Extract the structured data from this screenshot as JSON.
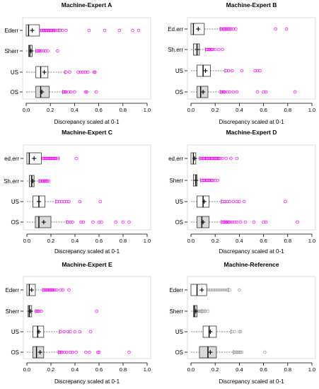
{
  "chart_data": [
    {
      "type": "boxplot",
      "title": "Machine-Expert A",
      "xlabel": "Discrepancy scaled at 0-1",
      "xlim": [
        0,
        1
      ],
      "xticks": [
        "0.0",
        "0.2",
        "0.4",
        "0.6",
        "0.8",
        "1.0"
      ],
      "point_color": "#ff00ff",
      "boxes": [
        {
          "label": "Ederr",
          "whisker_low": 0.0,
          "q1": 0.0,
          "median": 0.02,
          "q3": 0.11,
          "whisker_high": 0.27,
          "mean": 0.05,
          "fill": "#ffffff",
          "outliers": [
            0.12,
            0.13,
            0.14,
            0.15,
            0.16,
            0.17,
            0.18,
            0.19,
            0.2,
            0.21,
            0.22,
            0.23,
            0.24,
            0.26,
            0.28,
            0.3,
            0.33,
            0.52,
            0.65,
            0.77,
            0.88,
            0.93
          ]
        },
        {
          "label": "Sherr",
          "whisker_low": 0.0,
          "q1": 0.02,
          "median": 0.03,
          "q3": 0.05,
          "whisker_high": 0.08,
          "mean": 0.04,
          "fill": "#e8e8e8",
          "outliers": [
            0.09,
            0.1,
            0.11,
            0.12,
            0.14,
            0.16,
            0.18,
            0.26
          ]
        },
        {
          "label": "US",
          "whisker_low": 0.0,
          "q1": 0.08,
          "median": 0.12,
          "q3": 0.18,
          "whisker_high": 0.32,
          "mean": 0.15,
          "fill": "#ffffff",
          "outliers": [
            0.33,
            0.36,
            0.43,
            0.45,
            0.47,
            0.49,
            0.51,
            0.56,
            0.57
          ]
        },
        {
          "label": "OS",
          "whisker_low": 0.0,
          "q1": 0.08,
          "median": 0.12,
          "q3": 0.19,
          "whisker_high": 0.3,
          "mean": 0.13,
          "fill": "#d9d9d9",
          "outliers": [
            0.31,
            0.32,
            0.33,
            0.35,
            0.37,
            0.4,
            0.49,
            0.5,
            0.58
          ]
        }
      ]
    },
    {
      "type": "boxplot",
      "title": "Machine-Expert B",
      "xlabel": "Discrepancy scaled at 0-1",
      "xlim": [
        0,
        1
      ],
      "xticks": [
        "0.0",
        "0.2",
        "0.4",
        "0.6",
        "0.8",
        "1.0"
      ],
      "point_color": "#ff00ff",
      "boxes": [
        {
          "label": "Ed.err",
          "whisker_low": 0.0,
          "q1": 0.0,
          "median": 0.02,
          "q3": 0.11,
          "whisker_high": 0.24,
          "mean": 0.06,
          "fill": "#ffffff",
          "outliers": [
            0.25,
            0.26,
            0.27,
            0.28,
            0.29,
            0.3,
            0.31,
            0.32,
            0.33,
            0.35,
            0.37,
            0.7,
            0.79
          ]
        },
        {
          "label": "Sh.err",
          "whisker_low": 0.0,
          "q1": 0.02,
          "median": 0.05,
          "q3": 0.07,
          "whisker_high": 0.12,
          "mean": 0.05,
          "fill": "#e8e8e8",
          "outliers": [
            0.13,
            0.14,
            0.15,
            0.16,
            0.17,
            0.18,
            0.2,
            0.23,
            0.26
          ]
        },
        {
          "label": "US",
          "whisker_low": 0.0,
          "q1": 0.05,
          "median": 0.1,
          "q3": 0.16,
          "whisker_high": 0.28,
          "mean": 0.12,
          "fill": "#ffffff",
          "outliers": [
            0.29,
            0.31,
            0.34,
            0.42,
            0.53,
            0.55,
            0.57
          ]
        },
        {
          "label": "OS",
          "whisker_low": 0.0,
          "q1": 0.05,
          "median": 0.08,
          "q3": 0.14,
          "whisker_high": 0.24,
          "mean": 0.1,
          "fill": "#d9d9d9",
          "outliers": [
            0.25,
            0.26,
            0.27,
            0.28,
            0.3,
            0.32,
            0.35,
            0.38,
            0.55,
            0.6,
            0.62,
            0.86
          ]
        }
      ]
    },
    {
      "type": "boxplot",
      "title": "Machine-Expert C",
      "xlabel": "Discrepancy scaled at 0-1",
      "xlim": [
        0,
        1
      ],
      "xticks": [
        "0.0",
        "0.2",
        "0.4",
        "0.6",
        "0.8",
        "1.0"
      ],
      "point_color": "#ff00ff",
      "boxes": [
        {
          "label": "ed.err",
          "whisker_low": 0.0,
          "q1": 0.0,
          "median": 0.02,
          "q3": 0.12,
          "whisker_high": 0.27,
          "mean": 0.06,
          "fill": "#ffffff",
          "outliers": [
            0.13,
            0.14,
            0.15,
            0.16,
            0.17,
            0.18,
            0.19,
            0.2,
            0.21,
            0.22,
            0.23,
            0.24,
            0.25,
            0.41
          ]
        },
        {
          "label": "Sh.err",
          "whisker_low": 0.0,
          "q1": 0.02,
          "median": 0.04,
          "q3": 0.06,
          "whisker_high": 0.1,
          "mean": 0.05,
          "fill": "#e8e8e8",
          "outliers": [
            0.11,
            0.12,
            0.13,
            0.14,
            0.15,
            0.16,
            0.17,
            0.18
          ]
        },
        {
          "label": "US",
          "whisker_low": 0.0,
          "q1": 0.05,
          "median": 0.1,
          "q3": 0.15,
          "whisker_high": 0.24,
          "mean": 0.1,
          "fill": "#ffffff",
          "outliers": [
            0.25,
            0.27,
            0.29,
            0.31,
            0.33,
            0.35,
            0.44,
            0.61
          ]
        },
        {
          "label": "OS",
          "whisker_low": 0.0,
          "q1": 0.07,
          "median": 0.1,
          "q3": 0.2,
          "whisker_high": 0.33,
          "mean": 0.14,
          "fill": "#d9d9d9",
          "outliers": [
            0.34,
            0.36,
            0.38,
            0.45,
            0.47,
            0.55,
            0.6,
            0.62,
            0.74,
            0.8,
            0.85
          ]
        }
      ]
    },
    {
      "type": "boxplot",
      "title": "Machine-Expert D",
      "xlabel": "Discrepancy scaled at 0-1",
      "xlim": [
        0,
        1
      ],
      "xticks": [
        "0.0",
        "0.2",
        "0.4",
        "0.6",
        "0.8",
        "1.0"
      ],
      "point_color": "#ff00ff",
      "boxes": [
        {
          "label": "ed.err",
          "whisker_low": 0.0,
          "q1": 0.0,
          "median": 0.02,
          "q3": 0.04,
          "whisker_high": 0.07,
          "mean": 0.03,
          "fill": "#ffffff",
          "outliers": [
            0.08,
            0.09,
            0.1,
            0.11,
            0.12,
            0.13,
            0.14,
            0.15,
            0.16,
            0.17,
            0.18,
            0.19,
            0.2,
            0.21,
            0.22,
            0.23,
            0.24,
            0.26,
            0.29,
            0.33,
            0.38
          ]
        },
        {
          "label": "Sherr",
          "whisker_low": 0.0,
          "q1": 0.02,
          "median": 0.04,
          "q3": 0.05,
          "whisker_high": 0.08,
          "mean": 0.04,
          "fill": "#e8e8e8",
          "outliers": [
            0.09,
            0.1,
            0.11,
            0.12,
            0.13,
            0.14,
            0.15,
            0.16,
            0.17,
            0.18,
            0.2,
            0.22
          ]
        },
        {
          "label": "US",
          "whisker_low": 0.0,
          "q1": 0.05,
          "median": 0.1,
          "q3": 0.15,
          "whisker_high": 0.25,
          "mean": 0.11,
          "fill": "#ffffff",
          "outliers": [
            0.26,
            0.28,
            0.3,
            0.32,
            0.35,
            0.38,
            0.4,
            0.44,
            0.78
          ]
        },
        {
          "label": "OS",
          "whisker_low": 0.0,
          "q1": 0.05,
          "median": 0.09,
          "q3": 0.15,
          "whisker_high": 0.25,
          "mean": 0.1,
          "fill": "#d9d9d9",
          "outliers": [
            0.26,
            0.27,
            0.28,
            0.29,
            0.3,
            0.31,
            0.32,
            0.34,
            0.36,
            0.38,
            0.41,
            0.45,
            0.52,
            0.6,
            0.62,
            0.88
          ]
        }
      ]
    },
    {
      "type": "boxplot",
      "title": "Machine-Expert E",
      "xlabel": "Discrepancy scaled at 0-1",
      "xlim": [
        0,
        1
      ],
      "xticks": [
        "0.0",
        "0.2",
        "0.4",
        "0.6",
        "0.8",
        "1.0"
      ],
      "point_color": "#ff00ff",
      "boxes": [
        {
          "label": "Ederr",
          "whisker_low": 0.0,
          "q1": 0.0,
          "median": 0.02,
          "q3": 0.07,
          "whisker_high": 0.13,
          "mean": 0.04,
          "fill": "#ffffff",
          "outliers": [
            0.14,
            0.15,
            0.16,
            0.17,
            0.18,
            0.19,
            0.2,
            0.21,
            0.22,
            0.23,
            0.25,
            0.28,
            0.3,
            0.35
          ]
        },
        {
          "label": "Sherr",
          "whisker_low": 0.0,
          "q1": 0.01,
          "median": 0.02,
          "q3": 0.04,
          "whisker_high": 0.07,
          "mean": 0.03,
          "fill": "#e8e8e8",
          "outliers": [
            0.08,
            0.09,
            0.1,
            0.12,
            0.58
          ]
        },
        {
          "label": "US",
          "whisker_low": 0.0,
          "q1": 0.05,
          "median": 0.09,
          "q3": 0.14,
          "whisker_high": 0.27,
          "mean": 0.1,
          "fill": "#ffffff",
          "outliers": [
            0.28,
            0.31,
            0.34,
            0.36,
            0.4,
            0.44,
            0.53
          ]
        },
        {
          "label": "OS",
          "whisker_low": 0.0,
          "q1": 0.05,
          "median": 0.08,
          "q3": 0.14,
          "whisker_high": 0.26,
          "mean": 0.11,
          "fill": "#d9d9d9",
          "outliers": [
            0.27,
            0.28,
            0.29,
            0.31,
            0.33,
            0.36,
            0.38,
            0.41,
            0.49,
            0.52,
            0.59,
            0.6,
            0.85
          ]
        }
      ]
    },
    {
      "type": "boxplot",
      "title": "Machine-Reference",
      "xlabel": "Discrepancy scaled at 0-1",
      "xlim": [
        0,
        1
      ],
      "xticks": [
        "0.0",
        "0.2",
        "0.4",
        "0.6",
        "0.8",
        "1.0"
      ],
      "point_color": "#999999",
      "boxes": [
        {
          "label": "Ederr",
          "whisker_low": 0.0,
          "q1": 0.0,
          "median": 0.05,
          "q3": 0.13,
          "whisker_high": 0.31,
          "mean": 0.09,
          "fill": "#ffffff",
          "outliers": [
            0.14,
            0.16,
            0.18,
            0.2,
            0.22,
            0.24,
            0.26,
            0.28,
            0.3,
            0.32,
            0.4
          ]
        },
        {
          "label": "Sherr",
          "whisker_low": 0.0,
          "q1": 0.02,
          "median": 0.03,
          "q3": 0.05,
          "whisker_high": 0.09,
          "mean": 0.04,
          "fill": "#e8e8e8",
          "outliers": [
            0.06,
            0.07,
            0.08,
            0.1,
            0.11,
            0.12,
            0.14
          ]
        },
        {
          "label": "US",
          "whisker_low": 0.0,
          "q1": 0.1,
          "median": 0.15,
          "q3": 0.21,
          "whisker_high": 0.33,
          "mean": 0.16,
          "fill": "#ffffff",
          "outliers": [
            0.34,
            0.36,
            0.4,
            0.41
          ]
        },
        {
          "label": "OS",
          "whisker_low": 0.0,
          "q1": 0.07,
          "median": 0.14,
          "q3": 0.21,
          "whisker_high": 0.35,
          "mean": 0.16,
          "fill": "#d9d9d9",
          "outliers": [
            0.36,
            0.37,
            0.38,
            0.39,
            0.4,
            0.41,
            0.42,
            0.61
          ]
        }
      ]
    }
  ]
}
